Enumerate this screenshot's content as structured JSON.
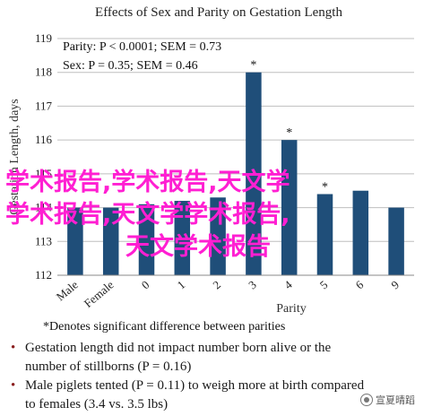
{
  "chart_data": {
    "type": "bar",
    "title": "Effects of Sex and Parity on Gestation Length",
    "ylabel": "Gestation Length, days",
    "xlabel": "Parity",
    "ylim": [
      112,
      119
    ],
    "yticks": [
      112,
      113,
      114,
      115,
      116,
      117,
      118,
      119
    ],
    "categories": [
      "Male",
      "Female",
      "0",
      "1",
      "2",
      "3",
      "4",
      "5",
      "6",
      "9"
    ],
    "values": [
      114.0,
      114.0,
      114.1,
      114.2,
      114.3,
      118.0,
      116.0,
      114.4,
      114.5,
      114.0
    ],
    "stars": [
      "",
      "",
      "",
      "",
      "",
      "*",
      "*",
      "*",
      "",
      ""
    ],
    "annotations": [
      "Parity: P < 0.0001; SEM = 0.73",
      "Sex: P = 0.35; SEM = 0.46"
    ],
    "bar_color": "#1f4e79",
    "grid": true
  },
  "footnote": "*Denotes significant difference between parities",
  "bullets": [
    {
      "lines": [
        "Gestation length did not impact number born alive or the",
        "number of stillborns (P = 0.16)"
      ]
    },
    {
      "lines": [
        "Male piglets tented (P = 0.11) to weigh more at birth compared",
        "to females (3.4 vs. 3.5 lbs)"
      ]
    }
  ],
  "watermark": {
    "lines": [
      "学术报告,学术报告,天文学",
      "学术报告,天文学学术报告,",
      "天文学术报告"
    ],
    "color": "#ff1fd2"
  },
  "badge": {
    "text": "宣夏晴蹈"
  }
}
